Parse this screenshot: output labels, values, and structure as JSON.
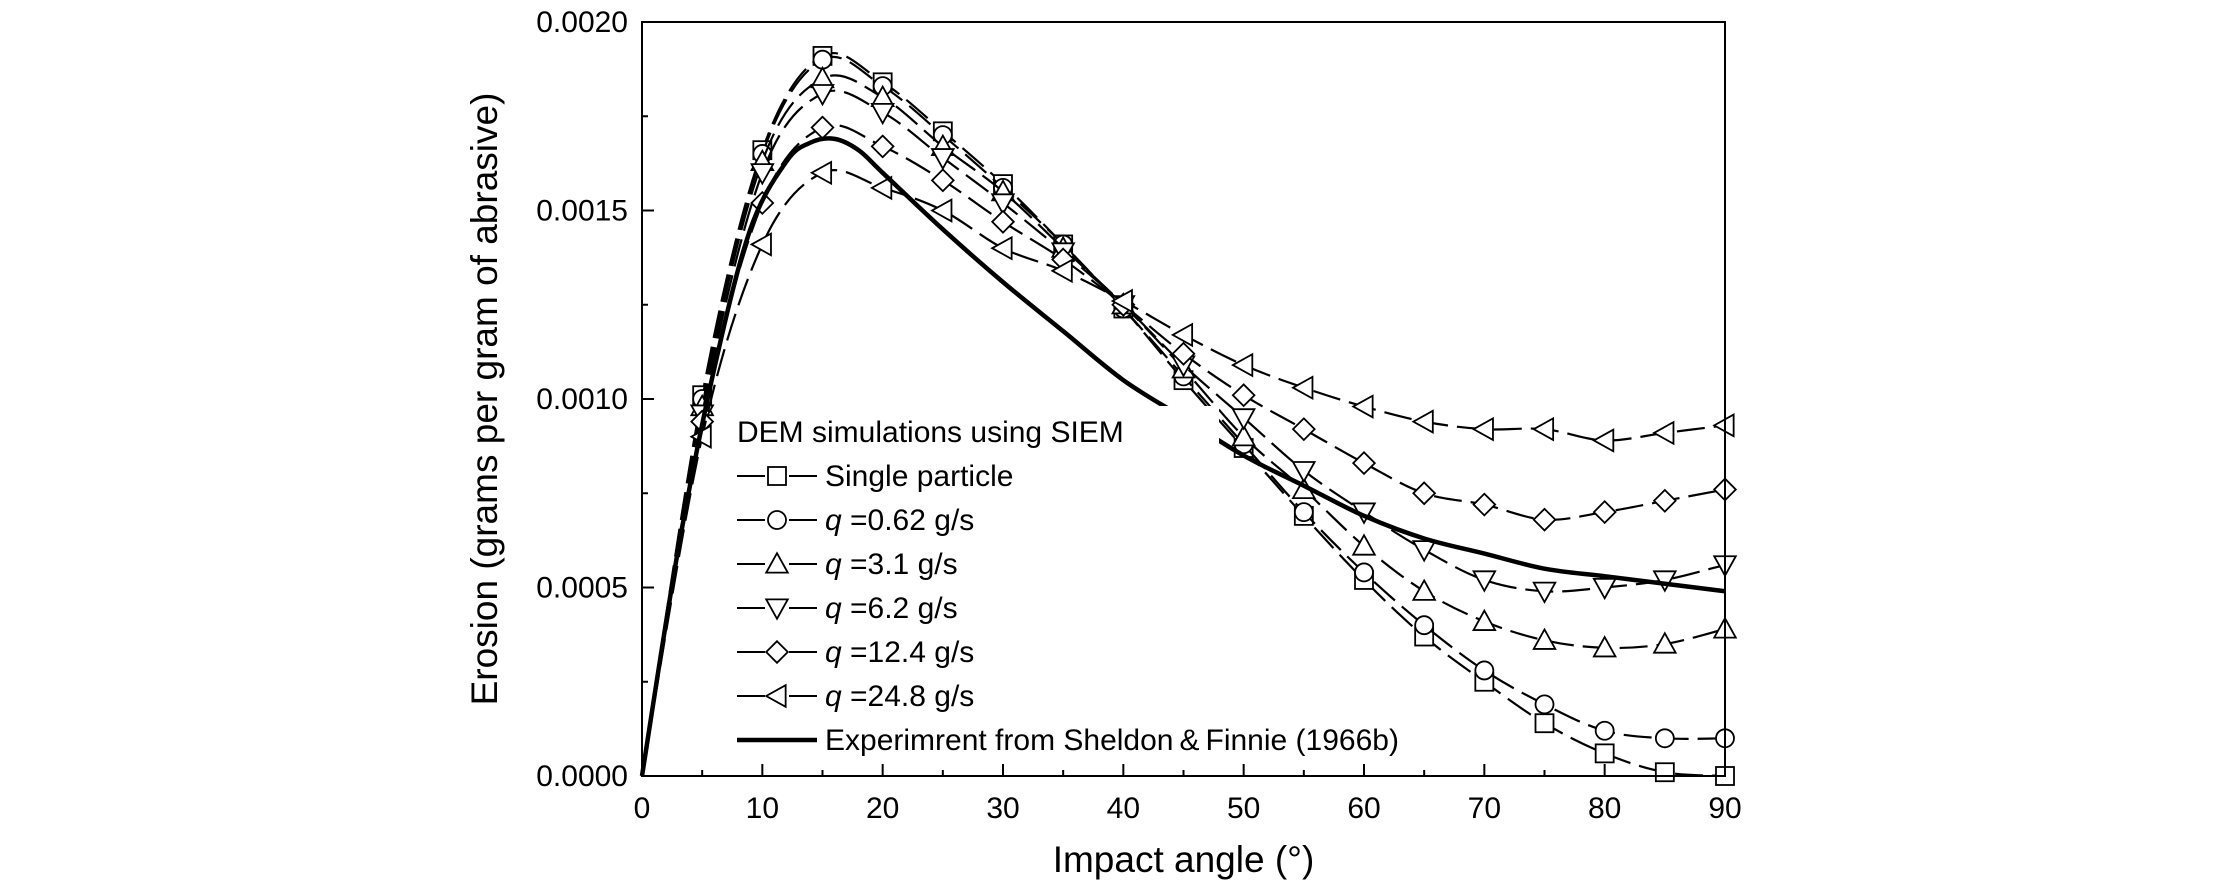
{
  "chart_data": {
    "type": "line",
    "xlabel": "Impact angle (°)",
    "ylabel": "Erosion (grams per gram of abrasive)",
    "xlim": [
      0,
      90
    ],
    "ylim": [
      0,
      0.002
    ],
    "x_ticks": [
      "0",
      "10",
      "20",
      "30",
      "40",
      "50",
      "60",
      "70",
      "80",
      "90"
    ],
    "y_ticks": [
      "0.0000",
      "0.0005",
      "0.0010",
      "0.0015",
      "0.0020"
    ],
    "grid": false,
    "legend_title": "DEM simulations using SIEM",
    "legend_placement": "lower-left",
    "x": [
      0,
      5,
      10,
      15,
      20,
      25,
      30,
      35,
      40,
      45,
      50,
      55,
      60,
      65,
      70,
      75,
      80,
      85,
      90
    ],
    "series": [
      {
        "name": "Single particle",
        "legend_prefix": "",
        "legend_suffix": "Single particle",
        "marker": "square",
        "values": [
          0.0,
          0.00101,
          0.00166,
          0.00191,
          0.00184,
          0.00171,
          0.00157,
          0.00141,
          0.00124,
          0.00105,
          0.00087,
          0.00069,
          0.00052,
          0.00037,
          0.00025,
          0.00014,
          6e-05,
          1e-05,
          0.0
        ]
      },
      {
        "name": "q =0.62 g/s",
        "legend_prefix": "q",
        "legend_suffix": " =0.62 g/s",
        "marker": "circle",
        "values": [
          0.0,
          0.001,
          0.00165,
          0.0019,
          0.00183,
          0.0017,
          0.00156,
          0.00141,
          0.00124,
          0.00106,
          0.00088,
          0.0007,
          0.00054,
          0.0004,
          0.00028,
          0.00019,
          0.00012,
          0.0001,
          0.0001
        ]
      },
      {
        "name": "q =3.1 g/s",
        "legend_prefix": "q",
        "legend_suffix": " =3.1 g/s",
        "marker": "triangle-up",
        "values": [
          0.0,
          0.00098,
          0.00163,
          0.00185,
          0.0018,
          0.00167,
          0.00155,
          0.0014,
          0.00125,
          0.00108,
          0.0009,
          0.00076,
          0.00061,
          0.00049,
          0.00041,
          0.00036,
          0.00034,
          0.00035,
          0.00039
        ]
      },
      {
        "name": "q =6.2 g/s",
        "legend_prefix": "q",
        "legend_suffix": " =6.2 g/s",
        "marker": "triangle-down",
        "values": [
          0.0,
          0.00096,
          0.0016,
          0.00181,
          0.00176,
          0.00164,
          0.00152,
          0.00139,
          0.00125,
          0.00109,
          0.00095,
          0.00081,
          0.0007,
          0.0006,
          0.00052,
          0.00049,
          0.0005,
          0.00052,
          0.00056
        ]
      },
      {
        "name": "q =12.4 g/s",
        "legend_prefix": "q",
        "legend_suffix": " =12.4 g/s",
        "marker": "diamond",
        "values": [
          0.0,
          0.00094,
          0.00152,
          0.00172,
          0.00167,
          0.00158,
          0.00147,
          0.00137,
          0.00125,
          0.00112,
          0.00101,
          0.00092,
          0.00083,
          0.00075,
          0.00072,
          0.00068,
          0.0007,
          0.00073,
          0.00076
        ]
      },
      {
        "name": "q =24.8 g/s",
        "legend_prefix": "q",
        "legend_suffix": " =24.8 g/s",
        "marker": "triangle-left",
        "values": [
          0.0,
          0.0009,
          0.00141,
          0.0016,
          0.00156,
          0.0015,
          0.0014,
          0.00134,
          0.00126,
          0.00117,
          0.00109,
          0.00103,
          0.00098,
          0.00094,
          0.00092,
          0.00092,
          0.00089,
          0.00091,
          0.00093
        ]
      },
      {
        "name": "Experimrent from Sheldon & Finnie (1966b)",
        "legend_prefix": "",
        "legend_suffix": "Experimrent from Sheldon & Finnie (1966b)",
        "marker": "none",
        "style": "solid-thick",
        "x": [
          0,
          3,
          6,
          9,
          12,
          14,
          16,
          18,
          20,
          25,
          30,
          35,
          40,
          45,
          50,
          55,
          60,
          65,
          70,
          75,
          80,
          85,
          90
        ],
        "values": [
          0.0,
          0.0006,
          0.00108,
          0.00145,
          0.00163,
          0.00168,
          0.00169,
          0.00166,
          0.0016,
          0.00145,
          0.00131,
          0.00118,
          0.00105,
          0.00095,
          0.00085,
          0.00077,
          0.00069,
          0.00063,
          0.00059,
          0.00055,
          0.00053,
          0.00051,
          0.00049
        ]
      }
    ]
  }
}
